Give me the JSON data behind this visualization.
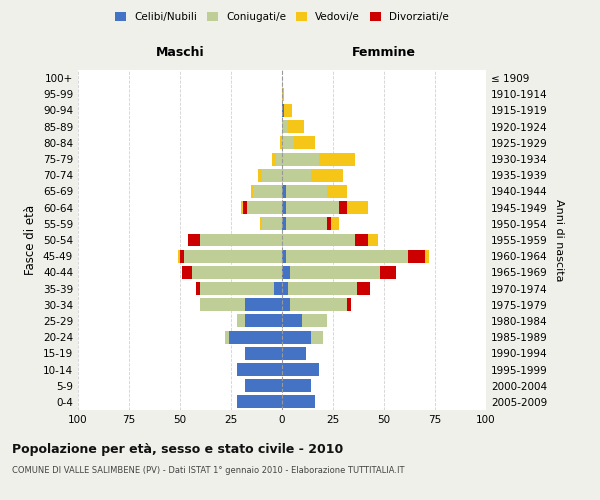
{
  "age_groups": [
    "0-4",
    "5-9",
    "10-14",
    "15-19",
    "20-24",
    "25-29",
    "30-34",
    "35-39",
    "40-44",
    "45-49",
    "50-54",
    "55-59",
    "60-64",
    "65-69",
    "70-74",
    "75-79",
    "80-84",
    "85-89",
    "90-94",
    "95-99",
    "100+"
  ],
  "birth_years": [
    "2005-2009",
    "2000-2004",
    "1995-1999",
    "1990-1994",
    "1985-1989",
    "1980-1984",
    "1975-1979",
    "1970-1974",
    "1965-1969",
    "1960-1964",
    "1955-1959",
    "1950-1954",
    "1945-1949",
    "1940-1944",
    "1935-1939",
    "1930-1934",
    "1925-1929",
    "1920-1924",
    "1915-1919",
    "1910-1914",
    "≤ 1909"
  ],
  "male": {
    "celibi": [
      22,
      18,
      22,
      18,
      26,
      18,
      18,
      4,
      0,
      0,
      0,
      0,
      0,
      0,
      0,
      0,
      0,
      0,
      0,
      0,
      0
    ],
    "coniugati": [
      0,
      0,
      0,
      0,
      2,
      4,
      22,
      36,
      44,
      48,
      40,
      10,
      17,
      14,
      10,
      3,
      0,
      0,
      0,
      0,
      0
    ],
    "vedovi": [
      0,
      0,
      0,
      0,
      0,
      0,
      0,
      0,
      0,
      1,
      0,
      1,
      1,
      1,
      2,
      2,
      1,
      0,
      0,
      0,
      0
    ],
    "divorziati": [
      0,
      0,
      0,
      0,
      0,
      0,
      0,
      2,
      5,
      2,
      6,
      0,
      2,
      0,
      0,
      0,
      0,
      0,
      0,
      0,
      0
    ]
  },
  "female": {
    "nubili": [
      16,
      14,
      18,
      12,
      14,
      10,
      4,
      3,
      4,
      2,
      0,
      2,
      2,
      2,
      0,
      0,
      0,
      0,
      1,
      0,
      0
    ],
    "coniugate": [
      0,
      0,
      0,
      0,
      6,
      12,
      28,
      34,
      44,
      60,
      36,
      20,
      26,
      20,
      14,
      18,
      6,
      3,
      0,
      0,
      0
    ],
    "vedove": [
      0,
      0,
      0,
      0,
      0,
      0,
      0,
      0,
      0,
      2,
      5,
      4,
      10,
      10,
      16,
      18,
      10,
      8,
      4,
      1,
      0
    ],
    "divorziate": [
      0,
      0,
      0,
      0,
      0,
      0,
      2,
      6,
      8,
      8,
      6,
      2,
      4,
      0,
      0,
      0,
      0,
      0,
      0,
      0,
      0
    ]
  },
  "colors": {
    "celibi_nubili": "#4472C4",
    "coniugati": "#BFCD96",
    "vedovi": "#F5C518",
    "divorziati": "#CC0000"
  },
  "xlim": 100,
  "title": "Popolazione per età, sesso e stato civile - 2010",
  "subtitle": "COMUNE DI VALLE SALIMBENE (PV) - Dati ISTAT 1° gennaio 2010 - Elaborazione TUTTITALIA.IT",
  "ylabel_left": "Fasce di età",
  "ylabel_right": "Anni di nascita",
  "xlabel_maschi": "Maschi",
  "xlabel_femmine": "Femmine",
  "bg_color": "#f0f0eb",
  "plot_bg": "#ffffff"
}
